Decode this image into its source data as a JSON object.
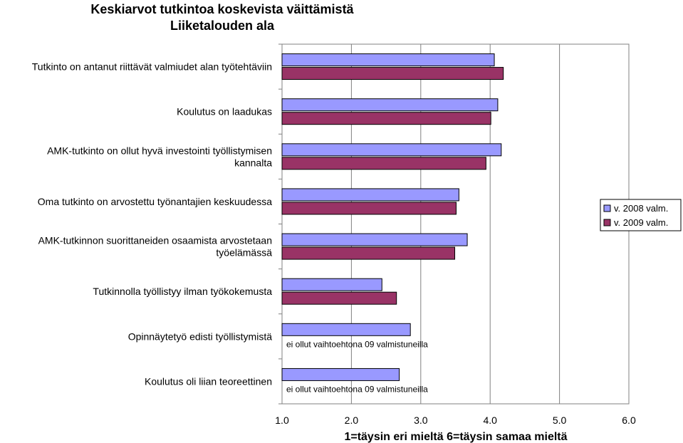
{
  "chart_data": {
    "type": "bar",
    "orientation": "horizontal",
    "title_line1": "Keskiarvot tutkintoa koskevista väittämistä",
    "title_line2": "Liiketalouden ala",
    "xlabel": "1=täysin eri mieltä 6=täysin samaa mieltä",
    "xlim": [
      1.0,
      6.0
    ],
    "x_ticks": [
      "1.0",
      "2.0",
      "3.0",
      "4.0",
      "5.0",
      "6.0"
    ],
    "grid": "vertical",
    "legend_position": "right",
    "categories": [
      [
        "Tutkinto on antanut riittävät valmiudet alan työtehtäviin"
      ],
      [
        "Koulutus on laadukas"
      ],
      [
        "AMK-tutkinto on ollut hyvä investointi työllistymisen",
        "kannalta"
      ],
      [
        "Oma tutkinto on arvostettu työnantajien keskuudessa"
      ],
      [
        "AMK-tutkinnon suorittaneiden osaamista arvostetaan",
        "työelämässä"
      ],
      [
        "Tutkinnolla työllistyy ilman työkokemusta"
      ],
      [
        "Opinnäytetyö edisti työllistymistä"
      ],
      [
        "Koulutus oli liian teoreettinen"
      ]
    ],
    "series": [
      {
        "name": "v. 2008 valm.",
        "color": "#9999ff",
        "values": [
          4.06,
          4.11,
          4.16,
          3.55,
          3.67,
          2.44,
          2.85,
          2.69
        ]
      },
      {
        "name": "v. 2009 valm.",
        "color": "#993366",
        "values": [
          4.19,
          4.01,
          3.94,
          3.51,
          3.49,
          2.65,
          null,
          null
        ]
      }
    ],
    "missing_note": "ei ollut vaihtoehtona 09 valmistuneilla"
  }
}
